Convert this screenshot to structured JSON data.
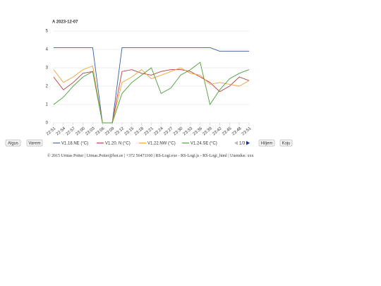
{
  "chart_data": {
    "type": "line",
    "title": "A 2023-12-07",
    "categories": [
      "22:51",
      "22:54",
      "22:57",
      "23:00",
      "23:03",
      "23:06",
      "23:09",
      "23:12",
      "23:15",
      "23:18",
      "23:21",
      "23:24",
      "23:27",
      "23:30",
      "23:33",
      "23:36",
      "23:39",
      "23:42",
      "23:45",
      "23:48",
      "23:51"
    ],
    "series": [
      {
        "name": "V1.18.NE (°C)",
        "color": "#3a5f9e",
        "values": [
          4.1,
          4.1,
          4.1,
          4.1,
          4.1,
          0,
          0,
          4.1,
          4.1,
          4.1,
          4.1,
          4.1,
          4.1,
          4.1,
          4.1,
          4.1,
          4.1,
          3.9,
          3.9,
          3.9,
          3.9
        ]
      },
      {
        "name": "V1.20. N (°C)",
        "color": "#b9403d",
        "values": [
          2.5,
          1.8,
          2.2,
          2.7,
          2.8,
          0,
          0,
          2.8,
          2.9,
          2.7,
          2.6,
          2.8,
          2.9,
          2.9,
          2.8,
          2.5,
          2.2,
          1.7,
          2.0,
          2.5,
          2.3
        ]
      },
      {
        "name": "V1.22.NW (°C)",
        "color": "#eea43a",
        "values": [
          2.9,
          2.2,
          2.5,
          2.9,
          3.1,
          0,
          0,
          2.2,
          2.5,
          2.9,
          2.4,
          2.6,
          2.8,
          3.0,
          2.7,
          2.6,
          2.1,
          2.2,
          2.1,
          2.0,
          2.3
        ]
      },
      {
        "name": "V1.24.SE (°C)",
        "color": "#4c9d3d",
        "values": [
          1.0,
          1.4,
          2.0,
          2.5,
          2.8,
          0,
          0,
          1.6,
          2.2,
          2.6,
          3.0,
          1.6,
          1.9,
          2.6,
          2.9,
          3.3,
          1.0,
          1.8,
          2.4,
          2.7,
          2.9
        ]
      }
    ],
    "ylim": [
      0,
      5
    ],
    "yticks": [
      0,
      1,
      2,
      3,
      4,
      5
    ],
    "grid": true,
    "legend": "bottom"
  },
  "controls": {
    "first": "Algus",
    "earlier": "Varem",
    "page": "1/3",
    "later": "Hiljem",
    "home": "Koju"
  },
  "footer": "© 2015 Urmas Potter | Urmas.Potter@hot.ee | +372 56471160 | RS-Logi.exe - RS-Logi.js - RS-Logi_html | Uuendus: xxx"
}
